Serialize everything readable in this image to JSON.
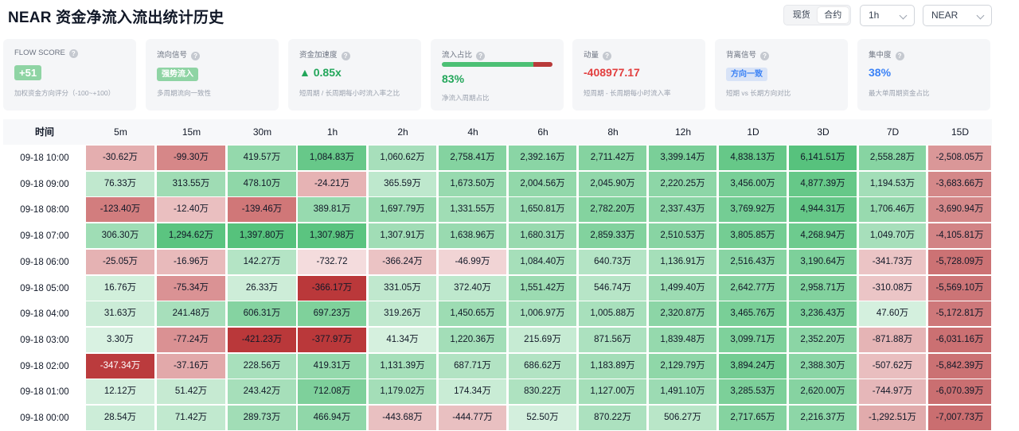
{
  "title": "NEAR 资金净流入流出统计历史",
  "market_toggle": {
    "options": [
      "现货",
      "合约"
    ],
    "active": "合约"
  },
  "interval_select": {
    "value": "1h"
  },
  "coin_select": {
    "value": "NEAR"
  },
  "cards": [
    {
      "title": "FLOW SCORE",
      "value": "+51",
      "desc": "加权资金方向评分（-100~+100）",
      "style": "badge-green"
    },
    {
      "title": "流向信号",
      "value": "强势流入",
      "desc": "多周期流向一致性",
      "style": "badge-strong"
    },
    {
      "title": "资金加速度",
      "value": "▲ 0.85x",
      "desc": "短周期 / 长周期每小时流入率之比",
      "style": "green"
    },
    {
      "title": "流入占比",
      "value": "83%",
      "desc": "净流入周期占比",
      "style": "green",
      "progress": 0.83
    },
    {
      "title": "动量",
      "value": "-408977.17",
      "desc": "短周期 - 长周期每小时流入率",
      "style": "red"
    },
    {
      "title": "背离信号",
      "value": "方向一致",
      "desc": "短期 vs 长期方向对比",
      "style": "badge-blue"
    },
    {
      "title": "集中度",
      "value": "38%",
      "desc": "最大单周期资金占比",
      "style": "blue"
    }
  ],
  "table": {
    "headers": [
      "时间",
      "5m",
      "15m",
      "30m",
      "1h",
      "2h",
      "4h",
      "6h",
      "8h",
      "12h",
      "1D",
      "3D",
      "7D",
      "15D"
    ],
    "rows": [
      {
        "time": "09-18 10:00",
        "cells": [
          "-30.62万",
          "-99.30万",
          "419.57万",
          "1,084.83万",
          "1,060.62万",
          "2,758.41万",
          "2,392.16万",
          "2,711.42万",
          "3,399.14万",
          "4,838.13万",
          "6,141.51万",
          "2,558.28万",
          "-2,508.05万"
        ]
      },
      {
        "time": "09-18 09:00",
        "cells": [
          "76.33万",
          "313.55万",
          "478.10万",
          "-24.21万",
          "365.59万",
          "1,673.50万",
          "2,004.56万",
          "2,045.90万",
          "2,220.25万",
          "3,456.00万",
          "4,877.39万",
          "1,194.53万",
          "-3,683.66万"
        ]
      },
      {
        "time": "09-18 08:00",
        "cells": [
          "-123.40万",
          "-12.40万",
          "-139.46万",
          "389.81万",
          "1,697.79万",
          "1,331.55万",
          "1,650.81万",
          "2,782.20万",
          "2,337.43万",
          "3,769.92万",
          "4,944.31万",
          "1,706.46万",
          "-3,690.94万"
        ]
      },
      {
        "time": "09-18 07:00",
        "cells": [
          "306.30万",
          "1,294.62万",
          "1,397.80万",
          "1,307.98万",
          "1,307.91万",
          "1,638.96万",
          "1,680.31万",
          "2,859.33万",
          "2,510.53万",
          "3,805.85万",
          "4,268.94万",
          "1,049.70万",
          "-4,105.81万"
        ]
      },
      {
        "time": "09-18 06:00",
        "cells": [
          "-25.05万",
          "-16.96万",
          "142.27万",
          "-732.72",
          "-366.24万",
          "-46.99万",
          "1,084.40万",
          "640.73万",
          "1,136.91万",
          "2,516.43万",
          "3,190.64万",
          "-341.73万",
          "-5,728.09万"
        ]
      },
      {
        "time": "09-18 05:00",
        "cells": [
          "16.76万",
          "-75.34万",
          "26.33万",
          "-366.17万",
          "331.05万",
          "372.40万",
          "1,551.42万",
          "546.74万",
          "1,499.40万",
          "2,642.77万",
          "2,958.71万",
          "-310.08万",
          "-5,569.10万"
        ]
      },
      {
        "time": "09-18 04:00",
        "cells": [
          "31.63万",
          "241.48万",
          "606.31万",
          "697.23万",
          "319.26万",
          "1,450.65万",
          "1,006.97万",
          "1,005.88万",
          "2,320.87万",
          "3,465.76万",
          "3,236.43万",
          "47.60万",
          "-5,172.81万"
        ]
      },
      {
        "time": "09-18 03:00",
        "cells": [
          "3.30万",
          "-77.24万",
          "-421.23万",
          "-377.97万",
          "41.34万",
          "1,220.36万",
          "215.69万",
          "871.56万",
          "1,839.48万",
          "3,099.71万",
          "2,352.20万",
          "-871.88万",
          "-6,031.16万"
        ]
      },
      {
        "time": "09-18 02:00",
        "cells": [
          "-347.34万",
          "-37.16万",
          "228.56万",
          "419.31万",
          "1,131.39万",
          "687.71万",
          "686.62万",
          "1,183.89万",
          "2,129.79万",
          "3,894.24万",
          "2,388.30万",
          "-507.62万",
          "-5,842.39万"
        ]
      },
      {
        "time": "09-18 01:00",
        "cells": [
          "12.12万",
          "51.42万",
          "243.42万",
          "712.08万",
          "1,179.02万",
          "174.34万",
          "830.22万",
          "1,127.00万",
          "1,491.10万",
          "3,285.53万",
          "2,620.00万",
          "-744.97万",
          "-6,070.39万"
        ]
      },
      {
        "time": "09-18 00:00",
        "cells": [
          "28.54万",
          "71.42万",
          "289.73万",
          "466.94万",
          "-443.68万",
          "-444.77万",
          "52.50万",
          "870.22万",
          "506.27万",
          "2,717.65万",
          "2,216.37万",
          "-1,292.51万",
          "-7,007.73万"
        ]
      }
    ]
  }
}
